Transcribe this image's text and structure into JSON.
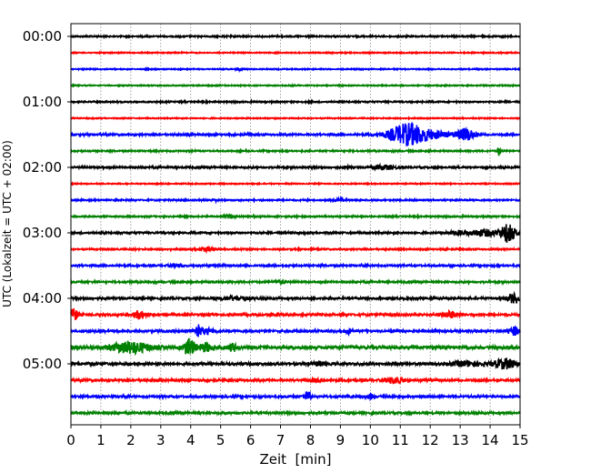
{
  "chart_data": {
    "type": "line",
    "subtype": "helicorder",
    "xlabel": "Zeit  [min]",
    "ylabel": "UTC (Lokalzeit = UTC + 02:00)",
    "xlim": [
      0,
      15
    ],
    "x_ticks": [
      "0",
      "1",
      "2",
      "3",
      "4",
      "5",
      "6",
      "7",
      "8",
      "9",
      "10",
      "11",
      "12",
      "13",
      "14",
      "15"
    ],
    "y_tick_labels": [
      "00:00",
      "01:00",
      "02:00",
      "03:00",
      "04:00",
      "05:00"
    ],
    "trace_minutes": 15,
    "grid": "vertical dotted at each minute",
    "color_cycle": [
      "#000000",
      "#ff0000",
      "#0000ff",
      "#008000"
    ],
    "grid_color": "#888888",
    "traces": [
      {
        "start": "00:00",
        "noise": 0.04,
        "events": []
      },
      {
        "start": "00:15",
        "noise": 0.03,
        "events": []
      },
      {
        "start": "00:30",
        "noise": 0.03,
        "events": [
          [
            5.6,
            0.1,
            0.1
          ]
        ]
      },
      {
        "start": "00:45",
        "noise": 0.03,
        "events": []
      },
      {
        "start": "01:00",
        "noise": 0.04,
        "events": []
      },
      {
        "start": "01:15",
        "noise": 0.03,
        "events": []
      },
      {
        "start": "01:30",
        "noise": 0.05,
        "events": [
          [
            11.2,
            0.6,
            0.6
          ],
          [
            12.0,
            0.8,
            0.2
          ],
          [
            13.2,
            0.3,
            0.35
          ]
        ]
      },
      {
        "start": "01:45",
        "noise": 0.04,
        "events": [
          [
            14.3,
            0.05,
            0.3
          ]
        ]
      },
      {
        "start": "02:00",
        "noise": 0.05,
        "events": [
          [
            10.5,
            0.4,
            0.12
          ],
          [
            9.2,
            0.1,
            0.1
          ]
        ]
      },
      {
        "start": "02:15",
        "noise": 0.03,
        "events": []
      },
      {
        "start": "02:30",
        "noise": 0.04,
        "events": [
          [
            9.0,
            0.2,
            0.08
          ],
          [
            4.8,
            0.1,
            0.08
          ]
        ]
      },
      {
        "start": "02:45",
        "noise": 0.04,
        "events": [
          [
            5.3,
            0.15,
            0.1
          ]
        ]
      },
      {
        "start": "03:00",
        "noise": 0.05,
        "events": [
          [
            14.6,
            0.25,
            0.55
          ],
          [
            13.8,
            0.5,
            0.2
          ],
          [
            12.9,
            0.3,
            0.12
          ]
        ]
      },
      {
        "start": "03:15",
        "noise": 0.04,
        "events": [
          [
            4.5,
            0.3,
            0.1
          ]
        ]
      },
      {
        "start": "03:30",
        "noise": 0.05,
        "events": [
          [
            3.5,
            0.2,
            0.08
          ]
        ]
      },
      {
        "start": "03:45",
        "noise": 0.05,
        "events": [
          [
            7.0,
            0.2,
            0.08
          ]
        ]
      },
      {
        "start": "04:00",
        "noise": 0.06,
        "events": [
          [
            14.8,
            0.2,
            0.3
          ],
          [
            5.5,
            0.5,
            0.1
          ]
        ]
      },
      {
        "start": "04:15",
        "noise": 0.06,
        "events": [
          [
            0.1,
            0.15,
            0.35
          ],
          [
            2.3,
            0.2,
            0.25
          ],
          [
            12.7,
            0.3,
            0.18
          ]
        ]
      },
      {
        "start": "04:30",
        "noise": 0.06,
        "events": [
          [
            4.25,
            0.05,
            0.85
          ],
          [
            4.5,
            0.3,
            0.15
          ],
          [
            9.3,
            0.1,
            0.2
          ],
          [
            14.8,
            0.2,
            0.25
          ]
        ]
      },
      {
        "start": "04:45",
        "noise": 0.09,
        "events": [
          [
            2.0,
            0.6,
            0.35
          ],
          [
            3.95,
            0.2,
            0.5
          ],
          [
            4.5,
            0.2,
            0.25
          ],
          [
            5.4,
            0.15,
            0.22
          ]
        ]
      },
      {
        "start": "05:00",
        "noise": 0.07,
        "events": [
          [
            14.5,
            0.4,
            0.3
          ],
          [
            13.2,
            0.5,
            0.15
          ],
          [
            8.3,
            0.2,
            0.12
          ]
        ]
      },
      {
        "start": "05:15",
        "noise": 0.06,
        "events": [
          [
            10.8,
            0.3,
            0.18
          ],
          [
            8.2,
            0.2,
            0.1
          ]
        ]
      },
      {
        "start": "05:30",
        "noise": 0.06,
        "events": [
          [
            7.9,
            0.12,
            0.3
          ],
          [
            10.0,
            0.1,
            0.15
          ]
        ]
      },
      {
        "start": "05:45",
        "noise": 0.06,
        "events": []
      }
    ]
  }
}
